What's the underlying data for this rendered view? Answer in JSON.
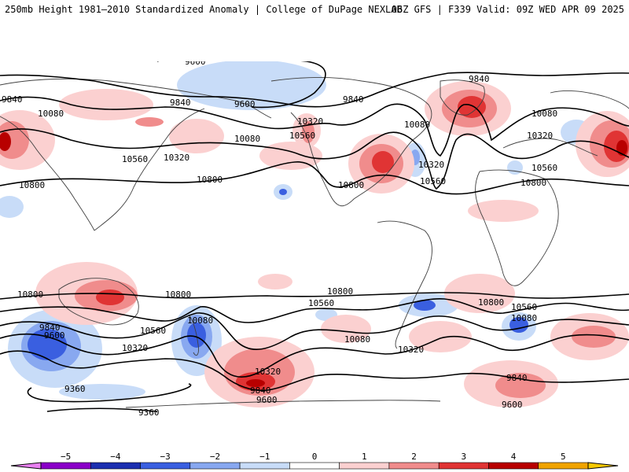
{
  "header": {
    "title_left": "250mb Height 1981–2010 Standardized Anomaly | College of DuPage NEXLAB",
    "title_right": "06Z GFS | F339 Valid: 09Z WED APR 09 2025"
  },
  "contour_labels": [
    {
      "text": "9600"
    },
    {
      "text": "9840"
    },
    {
      "text": "9840"
    },
    {
      "text": "9840"
    },
    {
      "text": "9840"
    },
    {
      "text": "9600"
    },
    {
      "text": "10080"
    },
    {
      "text": "10320"
    },
    {
      "text": "10560"
    },
    {
      "text": "10080"
    },
    {
      "text": "10080"
    },
    {
      "text": "10080"
    },
    {
      "text": "10320"
    },
    {
      "text": "10560"
    },
    {
      "text": "10320"
    },
    {
      "text": "10560"
    },
    {
      "text": "10800"
    },
    {
      "text": "10800"
    },
    {
      "text": "10800"
    },
    {
      "text": "10320"
    },
    {
      "text": "10560"
    },
    {
      "text": "10800"
    },
    {
      "text": "10800"
    },
    {
      "text": "10800"
    },
    {
      "text": "10800"
    },
    {
      "text": "10800"
    },
    {
      "text": "10560"
    },
    {
      "text": "10560"
    },
    {
      "text": "10560"
    },
    {
      "text": "9840"
    },
    {
      "text": "9600"
    },
    {
      "text": "10320"
    },
    {
      "text": "10080"
    },
    {
      "text": "10320"
    },
    {
      "text": "10080"
    },
    {
      "text": "10320"
    },
    {
      "text": "10080"
    },
    {
      "text": "9840"
    },
    {
      "text": "9600"
    },
    {
      "text": "9840"
    },
    {
      "text": "9600"
    },
    {
      "text": "9360"
    },
    {
      "text": "9360"
    }
  ],
  "colorbar": {
    "ticks": [
      "−5",
      "−4",
      "−3",
      "−2",
      "−1",
      "0",
      "1",
      "2",
      "3",
      "4",
      "5"
    ],
    "colors": [
      "#8a00c8",
      "#1c2fb0",
      "#3a5fe0",
      "#88a8f0",
      "#c8dcf8",
      "#ffffff",
      "#fbd0d0",
      "#f08c8c",
      "#e03434",
      "#b80000",
      "#f0a400"
    ],
    "left_arrow_color": "#e880f0",
    "right_arrow_color": "#f5c800"
  }
}
